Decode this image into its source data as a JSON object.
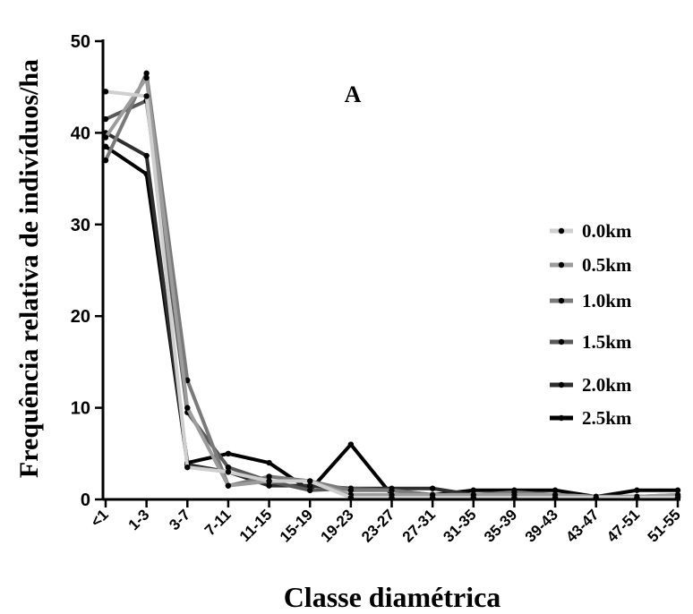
{
  "chart_data": {
    "type": "line",
    "title": "",
    "panel_label": "A",
    "xlabel": "Classe diamétrica",
    "ylabel": "Frequência relativa de indivíduos/ha",
    "ylim": [
      0,
      50
    ],
    "yticks": [
      0,
      10,
      20,
      30,
      40,
      50
    ],
    "categories": [
      "<1",
      "1-3",
      "3-7",
      "7-11",
      "11-15",
      "15-19",
      "19-23",
      "23-27",
      "27-31",
      "31-35",
      "35-39",
      "39-43",
      "43-47",
      "47-51",
      "51-55"
    ],
    "legend_position": "right",
    "grid": false,
    "series": [
      {
        "name": "2.5km",
        "color": "#000000",
        "values": [
          38.5,
          35.5,
          4.0,
          5.0,
          4.0,
          1.0,
          6.0,
          0.5,
          0.5,
          1.0,
          1.0,
          1.0,
          0.3,
          1.0,
          1.0
        ]
      },
      {
        "name": "2.0km",
        "color": "#2e2e2e",
        "values": [
          40.0,
          37.5,
          3.8,
          3.0,
          1.5,
          1.5,
          1.2,
          1.2,
          1.2,
          0.5,
          0.5,
          0.5,
          0.3,
          0.3,
          0.3
        ]
      },
      {
        "name": "1.5km",
        "color": "#595959",
        "values": [
          41.5,
          43.5,
          9.5,
          3.5,
          2.0,
          1.0,
          1.2,
          1.0,
          0.5,
          0.5,
          0.5,
          0.5,
          0.3,
          0.3,
          0.3
        ]
      },
      {
        "name": "1.0km",
        "color": "#7a7a7a",
        "values": [
          37.0,
          46.5,
          13.0,
          1.5,
          2.5,
          2.0,
          1.0,
          1.0,
          0.5,
          0.5,
          0.8,
          0.5,
          0.3,
          0.3,
          0.5
        ]
      },
      {
        "name": "0.5km",
        "color": "#9c9c9c",
        "values": [
          39.5,
          46.0,
          10.0,
          1.5,
          2.0,
          2.0,
          0.5,
          0.5,
          0.5,
          0.5,
          0.5,
          0.5,
          0.3,
          0.3,
          0.5
        ]
      },
      {
        "name": "0.0km",
        "color": "#cfcfcf",
        "values": [
          44.5,
          44.0,
          3.5,
          3.0,
          2.0,
          2.0,
          0.2,
          0.2,
          0.2,
          0.2,
          0.2,
          0.2,
          0.2,
          0.2,
          0.2
        ]
      }
    ],
    "legend_order": [
      "0.0km",
      "0.5km",
      "1.0km",
      "1.5km",
      "2.0km",
      "2.5km"
    ]
  }
}
